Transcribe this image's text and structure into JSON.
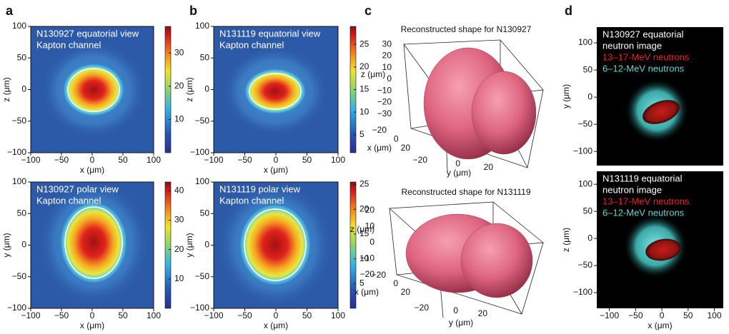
{
  "chart_data": [
    {
      "type": "heatmap",
      "panel_label": "a",
      "annotations": [
        "N130927 equatorial view",
        "Kapton channel"
      ],
      "xlabel": "x (μm)",
      "ylabel": "z (μm)",
      "xlim": [
        -100,
        100
      ],
      "ylim": [
        -100,
        100
      ],
      "xticks": [
        {
          "value": -100,
          "label": "−100"
        },
        {
          "value": -50,
          "label": "−50"
        },
        0,
        50,
        100
      ],
      "yticks": [
        100,
        50,
        0,
        {
          "value": -50,
          "label": "−50"
        },
        {
          "value": -100,
          "label": "−100"
        }
      ],
      "clim": [
        0,
        38
      ],
      "cticks": [
        10,
        20,
        30
      ]
    },
    {
      "type": "heatmap",
      "annotations": [
        "N130927 polar view",
        "Kapton channel"
      ],
      "xlabel": "x (μm)",
      "ylabel": "y (μm)",
      "xlim": [
        -100,
        100
      ],
      "ylim": [
        -100,
        100
      ],
      "xticks": [
        {
          "value": -100,
          "label": "−100"
        },
        {
          "value": -50,
          "label": "−50"
        },
        0,
        50,
        100
      ],
      "yticks": [
        100,
        50,
        0,
        {
          "value": -50,
          "label": "−50"
        },
        {
          "value": -100,
          "label": "−100"
        }
      ],
      "clim": [
        0,
        43
      ],
      "cticks": [
        10,
        20,
        30,
        40
      ]
    },
    {
      "type": "heatmap",
      "panel_label": "b",
      "annotations": [
        "N131119 equatorial view",
        "Kapton channel"
      ],
      "xlabel": "x (μm)",
      "ylabel": "z (μm)",
      "xlim": [
        -100,
        100
      ],
      "ylim": [
        -100,
        100
      ],
      "xticks": [
        {
          "value": -100,
          "label": "−100"
        },
        {
          "value": -50,
          "label": "−50"
        },
        0,
        50,
        100
      ],
      "yticks": [
        100,
        50,
        0,
        {
          "value": -50,
          "label": "−50"
        },
        {
          "value": -100,
          "label": "−100"
        }
      ],
      "clim": [
        1,
        29
      ],
      "cticks": [
        5,
        10,
        15,
        20,
        25
      ]
    },
    {
      "type": "heatmap",
      "annotations": [
        "N131119 polar view",
        "Kapton channel"
      ],
      "xlabel": "x (μm)",
      "ylabel": "y (μm)",
      "xlim": [
        -100,
        100
      ],
      "ylim": [
        -100,
        100
      ],
      "xticks": [
        {
          "value": -100,
          "label": "−100"
        },
        {
          "value": -50,
          "label": "−50"
        },
        0,
        50,
        100
      ],
      "yticks": [
        100,
        50,
        0,
        {
          "value": -50,
          "label": "−50"
        },
        {
          "value": -100,
          "label": "−100"
        }
      ],
      "clim": [
        0,
        25.5
      ],
      "cticks": [
        5,
        10,
        15,
        20,
        25
      ]
    },
    {
      "type": "surface3d",
      "panel_label": "c",
      "title": "Reconstructed shape for N130927",
      "xlabel": "x (μm)",
      "ylabel": "y (μm)",
      "zlabel": "z (μm)",
      "xlim": [
        -30,
        30
      ],
      "ylim": [
        -30,
        30
      ],
      "zlim": [
        -35,
        35
      ],
      "xticks": [
        {
          "value": -20,
          "label": "−20"
        },
        0,
        20
      ],
      "yticks": [
        {
          "value": -20,
          "label": "−20"
        },
        0,
        20
      ],
      "zticks": [
        30,
        20,
        10,
        0,
        {
          "value": -10,
          "label": "−10"
        },
        {
          "value": -20,
          "label": "−20"
        },
        {
          "value": -30,
          "label": "−30"
        }
      ]
    },
    {
      "type": "surface3d",
      "title": "Reconstructed shape for N131119",
      "xlabel": "x (μm)",
      "ylabel": "y (μm)",
      "zlabel": "z (μm)",
      "xlim": [
        -30,
        30
      ],
      "ylim": [
        -30,
        30
      ],
      "zlim": [
        -25,
        25
      ],
      "xticks": [
        {
          "value": -20,
          "label": "−20"
        },
        0,
        20
      ],
      "yticks": [
        {
          "value": -20,
          "label": "−20"
        },
        0,
        20
      ],
      "zticks": [
        20,
        10,
        0,
        {
          "value": -10,
          "label": "−10"
        },
        {
          "value": -20,
          "label": "−20"
        }
      ]
    },
    {
      "type": "image",
      "panel_label": "d",
      "annotations": [
        "N130927 equatorial",
        "neutron image"
      ],
      "legend": [
        {
          "label": "13–17-MeV neutrons",
          "color": "#e8231f"
        },
        {
          "label": "6–12-MeV neutrons",
          "color": "#62d3cf"
        }
      ],
      "ylabel": "y (μm)",
      "ylim": [
        -126,
        129
      ],
      "yticks": [
        100,
        50,
        0,
        {
          "value": -50,
          "label": "−50"
        },
        {
          "value": -100,
          "label": "−100"
        }
      ]
    },
    {
      "type": "image",
      "annotations": [
        "N131119 equatorial",
        "neutron image"
      ],
      "legend": [
        {
          "label": "13–17-MeV neutrons",
          "color": "#e8231f"
        },
        {
          "label": "6–12-MeV neutrons",
          "color": "#62d3cf"
        }
      ],
      "xlabel": "x (μm)",
      "ylabel": "z (μm)",
      "xlim": [
        -124,
        117
      ],
      "ylim": [
        -129,
        124
      ],
      "xticks": [
        {
          "value": -100,
          "label": "−100"
        },
        {
          "value": -50,
          "label": "−50"
        },
        0,
        50,
        100
      ],
      "yticks": [
        100,
        50,
        0,
        {
          "value": -50,
          "label": "−50"
        },
        {
          "value": -100,
          "label": "−100"
        }
      ]
    }
  ]
}
